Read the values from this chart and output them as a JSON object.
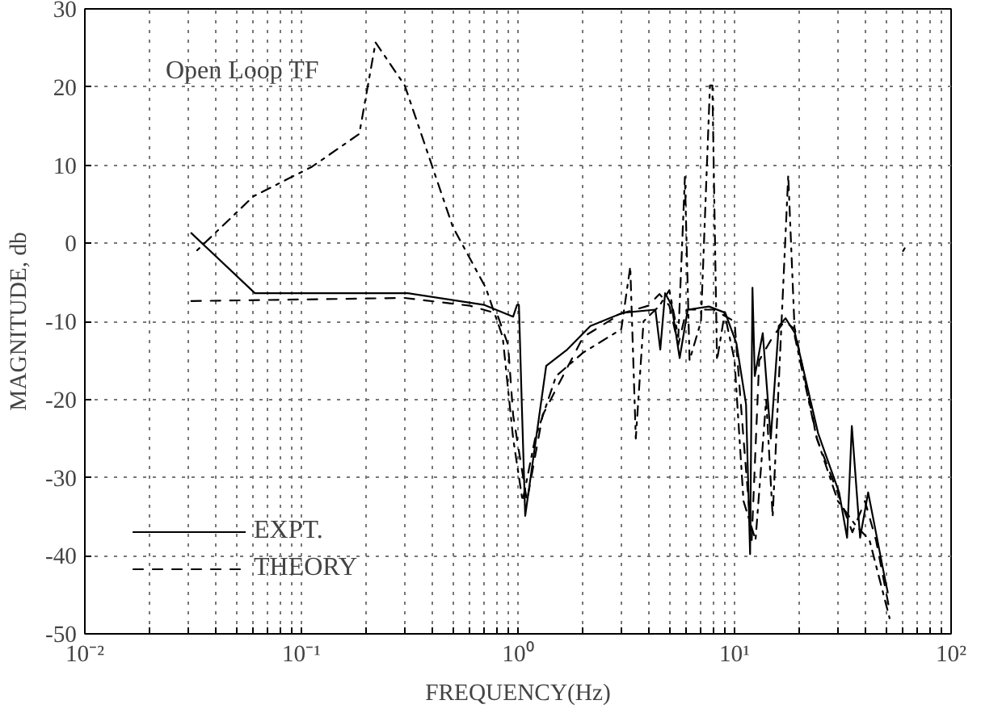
{
  "chart_data": {
    "type": "line",
    "xlabel": "FREQUENCY(Hz)",
    "ylabel": "MAGNITUDE, db",
    "log": "x",
    "grid": true,
    "legend": "bottom left",
    "annotations": [
      "Open Loop TF"
    ],
    "xlim": [
      0.01,
      100
    ],
    "ylim": [
      -50,
      30
    ],
    "xticks": [
      {
        "value": 0.01,
        "label": "10⁻²"
      },
      {
        "value": 0.02,
        "label": null
      },
      {
        "value": 0.03,
        "label": null
      },
      {
        "value": 0.04,
        "label": null
      },
      {
        "value": 0.05,
        "label": null
      },
      {
        "value": 0.06,
        "label": null
      },
      {
        "value": 0.07,
        "label": null
      },
      {
        "value": 0.08,
        "label": null
      },
      {
        "value": 0.09,
        "label": null
      },
      {
        "value": 0.1,
        "label": "10⁻¹"
      },
      {
        "value": 0.2,
        "label": null
      },
      {
        "value": 0.3,
        "label": null
      },
      {
        "value": 0.4,
        "label": null
      },
      {
        "value": 0.5,
        "label": null
      },
      {
        "value": 0.6,
        "label": null
      },
      {
        "value": 0.7,
        "label": null
      },
      {
        "value": 0.8,
        "label": null
      },
      {
        "value": 0.9,
        "label": null
      },
      {
        "value": 1,
        "label": "10⁰"
      },
      {
        "value": 2,
        "label": null
      },
      {
        "value": 3,
        "label": null
      },
      {
        "value": 4,
        "label": null
      },
      {
        "value": 5,
        "label": null
      },
      {
        "value": 6,
        "label": null
      },
      {
        "value": 7,
        "label": null
      },
      {
        "value": 8,
        "label": null
      },
      {
        "value": 9,
        "label": null
      },
      {
        "value": 10,
        "label": "10¹"
      },
      {
        "value": 20,
        "label": null
      },
      {
        "value": 30,
        "label": null
      },
      {
        "value": 40,
        "label": null
      },
      {
        "value": 50,
        "label": null
      },
      {
        "value": 60,
        "label": null
      },
      {
        "value": 70,
        "label": null
      },
      {
        "value": 80,
        "label": null
      },
      {
        "value": 90,
        "label": null
      },
      {
        "value": 100,
        "label": "10²"
      }
    ],
    "yticks": [
      -50,
      -40,
      -30,
      -20,
      -10,
      0,
      10,
      20,
      30
    ],
    "series": [
      {
        "name": "EXPT.",
        "color": "#000000",
        "line_style": "solid",
        "x": [
          0.031,
          0.061,
          0.31,
          0.7,
          0.95,
          0.99,
          1.01,
          1.04,
          1.08,
          1.35,
          1.69,
          2.16,
          3.05,
          4.31,
          4.54,
          4.78,
          5.12,
          5.58,
          6.08,
          7.62,
          9.06,
          10.2,
          11.3,
          11.8,
          12.1,
          12.4,
          13.5,
          14.7,
          16.0,
          17.2,
          19.0,
          24.3,
          30.4,
          33.1,
          34.8,
          38.0,
          41.4,
          49.2,
          51.0
        ],
        "values": [
          1.3,
          -6.4,
          -6.4,
          -7.9,
          -9.4,
          -7.9,
          -7.9,
          -20,
          -34.9,
          -15.7,
          -13.6,
          -10.6,
          -8.9,
          -8.5,
          -13.6,
          -6.4,
          -7.9,
          -14.7,
          -8.5,
          -8.1,
          -8.9,
          -12.8,
          -20.6,
          -39.8,
          -5.7,
          -17,
          -11.5,
          -25,
          -10.6,
          -9.6,
          -11.5,
          -24.3,
          -31.9,
          -37.7,
          -23.4,
          -37.7,
          -31.9,
          -42.6,
          -44.7
        ]
      },
      {
        "name": "THEORY",
        "color": "#000000",
        "line_style": "dashed",
        "x": [
          0.031,
          0.1,
          0.3,
          0.6,
          0.8,
          0.9,
          0.95,
          1.1,
          1.3,
          2,
          3,
          4,
          4.5,
          5,
          5.5,
          6,
          8,
          10,
          11,
          12,
          13,
          15,
          17,
          19,
          24,
          30,
          35,
          40,
          45,
          52
        ],
        "values": [
          -7.4,
          -7.2,
          -7,
          -8,
          -9,
          -13,
          -22,
          -33,
          -22,
          -12,
          -9,
          -8,
          -6.5,
          -8,
          -13,
          -8.5,
          -8.5,
          -10,
          -25,
          -38,
          -15,
          -12,
          -10,
          -11,
          -25,
          -32,
          -37,
          -33,
          -38,
          -47
        ]
      },
      {
        "color": "#000000",
        "line_style": "dotted",
        "x": [
          0.033,
          0.06,
          0.112,
          0.185,
          0.22,
          0.3,
          0.5,
          0.71,
          0.85,
          0.95,
          1.05,
          1.2,
          1.5,
          2,
          3,
          3.3,
          3.5,
          3.8,
          4.5,
          5.0,
          5.5,
          5.9,
          6.2,
          7,
          7.7,
          7.9,
          8.3,
          9,
          10,
          11,
          12.5,
          14,
          15,
          17.7,
          19,
          24,
          30,
          36,
          42,
          52,
          56,
          60,
          63
        ],
        "values": [
          -0.9,
          6,
          9.8,
          14,
          25.7,
          20.2,
          2.1,
          -5.7,
          -12,
          -25,
          -33,
          -25,
          -17,
          -14,
          -11,
          -3,
          -25,
          -10,
          -8,
          -6,
          -12,
          8.5,
          -15,
          -10,
          20.2,
          20.2,
          -15,
          -9,
          -15,
          -33,
          -38,
          -20,
          -35,
          8.7,
          -12,
          -25,
          -33,
          -36,
          -38,
          -48,
          null,
          -1,
          0
        ]
      }
    ]
  }
}
